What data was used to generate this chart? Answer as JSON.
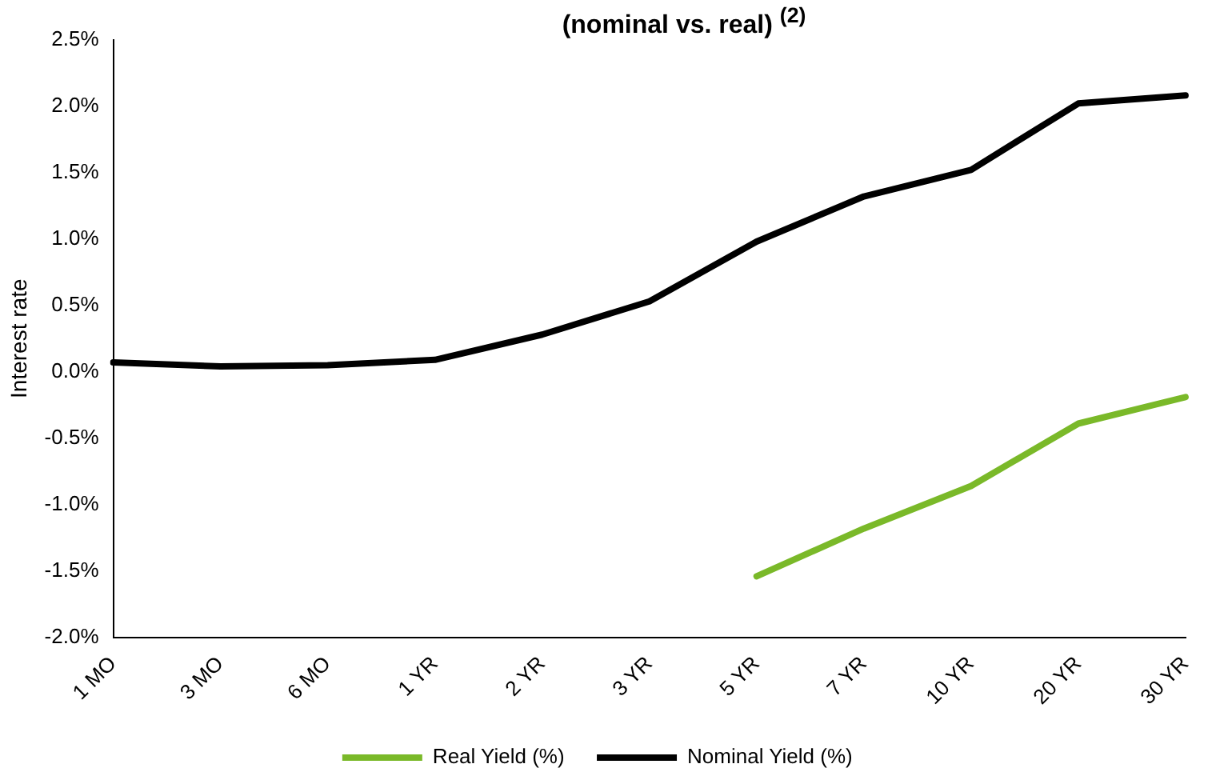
{
  "chart_data": {
    "type": "line",
    "title": "(nominal vs. real) $^{(2)}$",
    "ylabel": "Interest rate",
    "categories": [
      "1 MO",
      "3 MO",
      "6 MO",
      "1 YR",
      "2 YR",
      "3 YR",
      "5 YR",
      "7 YR",
      "10 YR",
      "20 YR",
      "30 YR"
    ],
    "series": [
      {
        "name": "Real Yield (%)",
        "color": "#7ab929",
        "values": [
          null,
          null,
          null,
          null,
          null,
          null,
          -1.54,
          -1.18,
          -0.86,
          -0.39,
          -0.19
        ]
      },
      {
        "name": "Nominal Yield (%)",
        "color": "#000000",
        "values": [
          0.07,
          0.04,
          0.05,
          0.09,
          0.28,
          0.53,
          0.98,
          1.32,
          1.52,
          2.02,
          2.08
        ]
      }
    ],
    "ylim": [
      -2.0,
      2.5
    ],
    "yticks": [
      {
        "value": -2.0,
        "label": "-2.0%"
      },
      {
        "value": -1.5,
        "label": "-1.5%"
      },
      {
        "value": -1.0,
        "label": "-1.0%"
      },
      {
        "value": -0.5,
        "label": "-0.5%"
      },
      {
        "value": 0,
        "label": "0.0%"
      },
      {
        "value": 0.5,
        "label": "0.5%"
      },
      {
        "value": 1.0,
        "label": "1.0%"
      },
      {
        "value": 1.5,
        "label": "1.5%"
      },
      {
        "value": 2.0,
        "label": "2.0%"
      },
      {
        "value": 2.5,
        "label": "2.5%"
      }
    ],
    "grid": false,
    "legend": "bottom",
    "marker": "none",
    "line_style": "solid"
  }
}
